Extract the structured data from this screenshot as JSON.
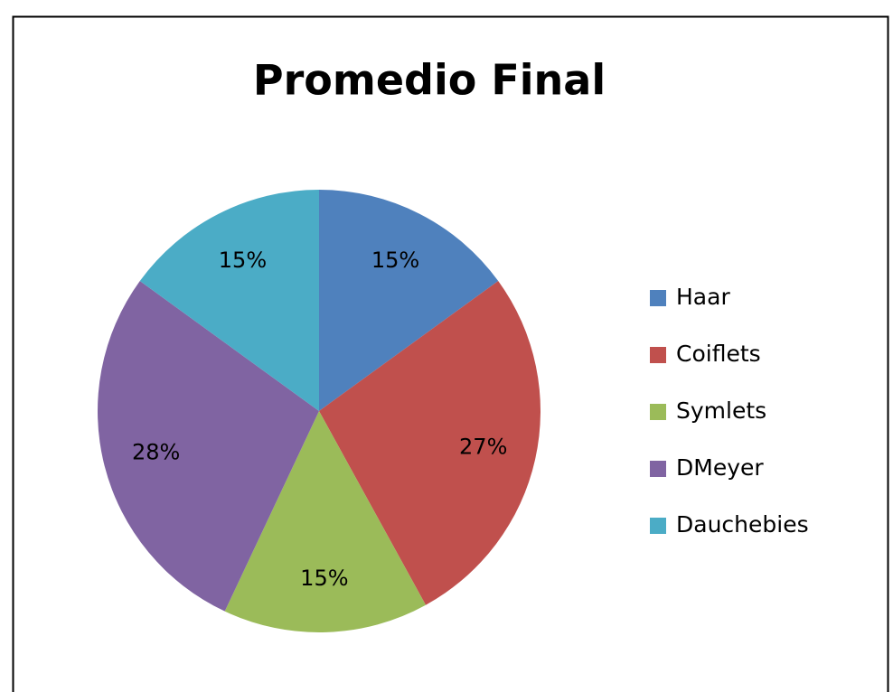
{
  "chart_data": {
    "type": "pie",
    "title": "Promedio Final",
    "categories": [
      "Haar",
      "Coiflets",
      "Symlets",
      "DMeyer",
      "Dauchebies"
    ],
    "values": [
      15,
      27,
      15,
      28,
      15
    ],
    "value_labels": [
      "15%",
      "27%",
      "15%",
      "28%",
      "15%"
    ],
    "colors": [
      "#4f81bd",
      "#c0504d",
      "#9bbb59",
      "#8064a2",
      "#4bacc6"
    ],
    "legend": "right"
  }
}
